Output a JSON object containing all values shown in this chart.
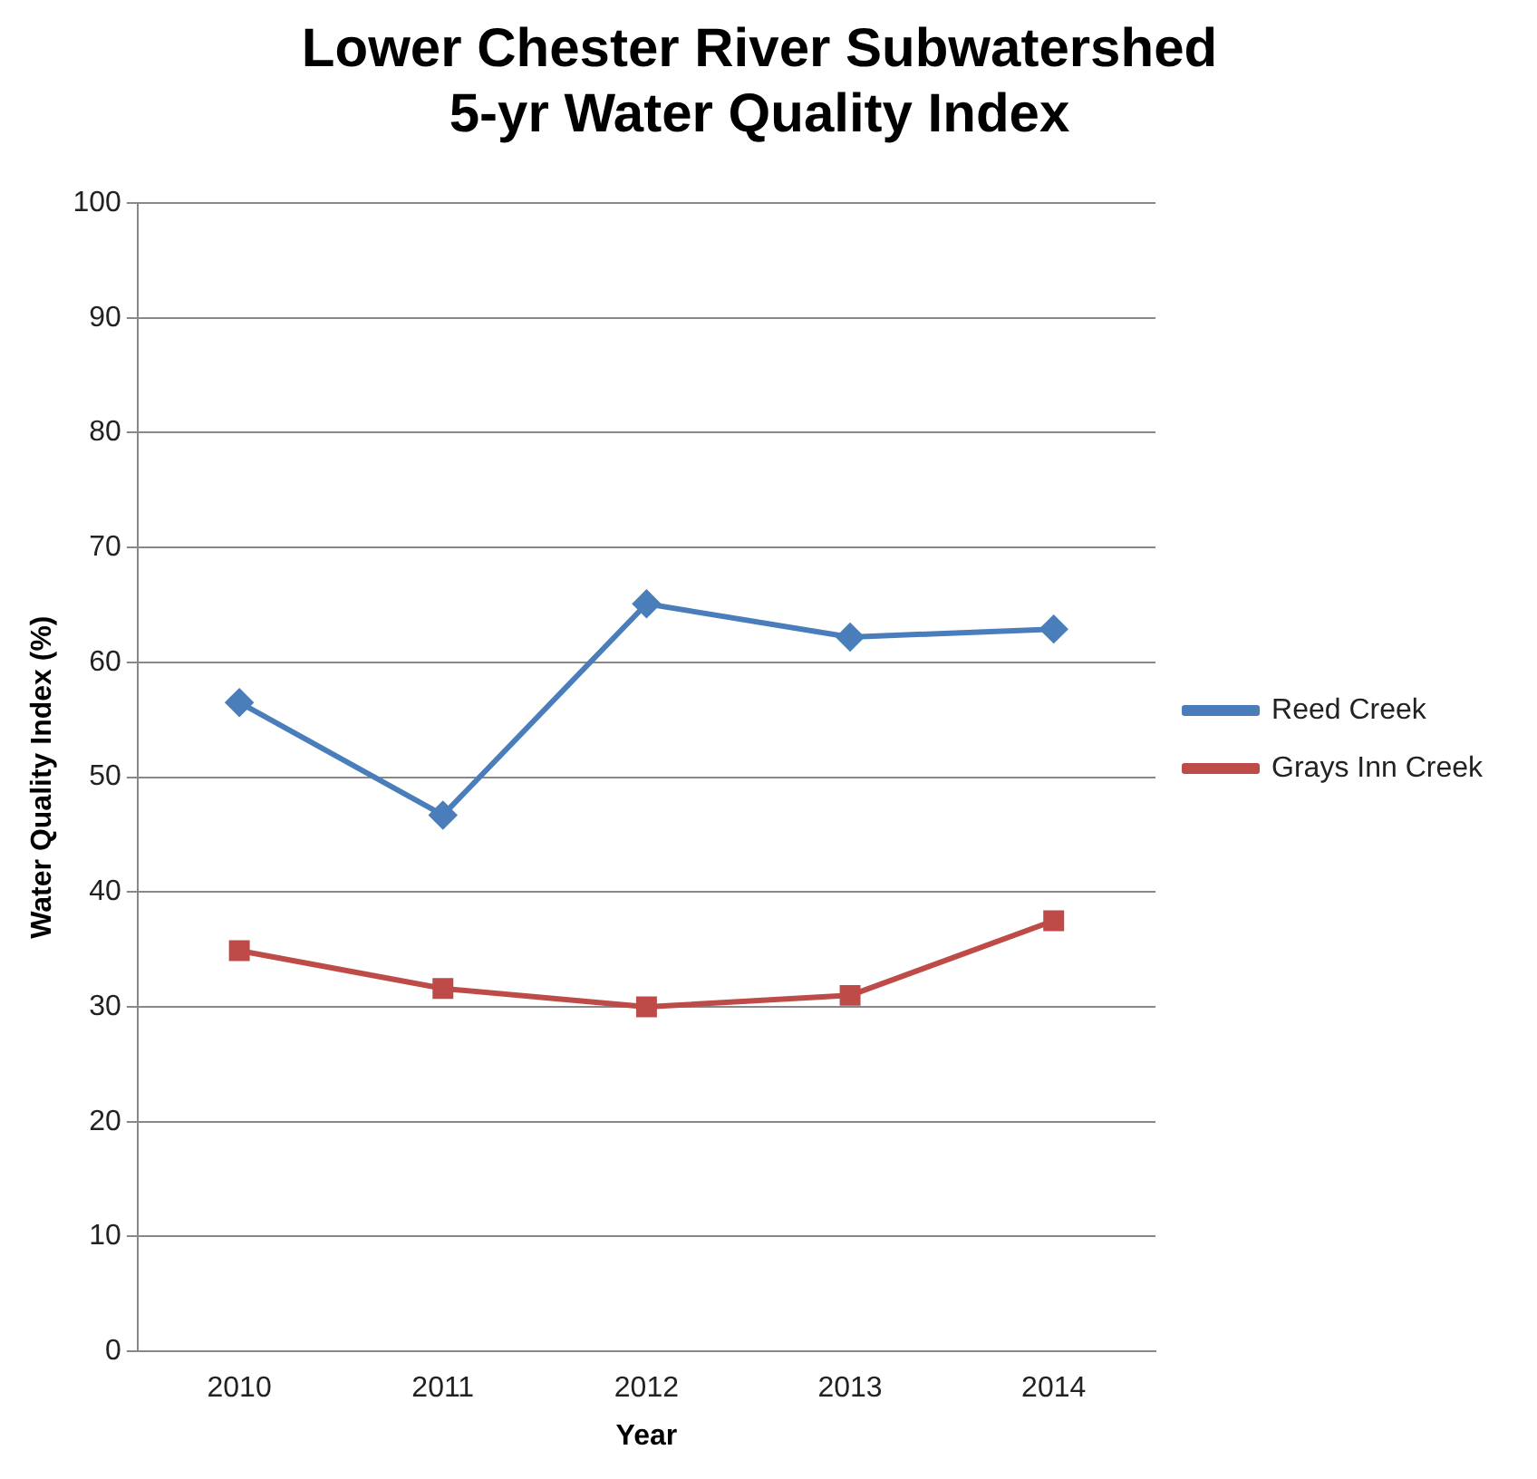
{
  "chart_data": {
    "type": "line",
    "title": "Lower Chester River Subwatershed\n5-yr Water Quality Index",
    "xlabel": "Year",
    "ylabel": "Water Quality Index (%)",
    "categories": [
      "2010",
      "2011",
      "2012",
      "2013",
      "2014"
    ],
    "series": [
      {
        "name": "Reed Creek",
        "color": "#4a7ebb",
        "marker": "diamond",
        "values": [
          56.5,
          46.7,
          65.1,
          62.2,
          62.9
        ]
      },
      {
        "name": "Grays Inn Creek",
        "color": "#be4b48",
        "marker": "square",
        "values": [
          34.9,
          31.6,
          30.0,
          31.0,
          37.5
        ]
      }
    ],
    "ylim": [
      0,
      100
    ],
    "yticks": [
      0,
      10,
      20,
      30,
      40,
      50,
      60,
      70,
      80,
      90,
      100
    ],
    "grid": "y",
    "legend": "right"
  }
}
